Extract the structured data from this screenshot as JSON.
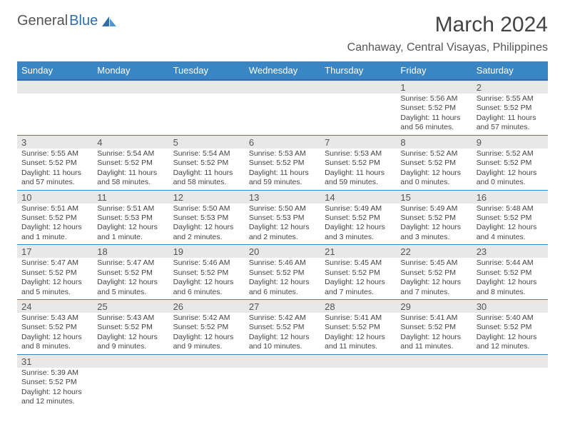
{
  "logo": {
    "text1": "General",
    "text2": "Blue"
  },
  "title": "March 2024",
  "location": "Canhaway, Central Visayas, Philippines",
  "colors": {
    "header_bg": "#3a86c4",
    "header_border": "#2f6ea8",
    "daynum_bg": "#e8e8e8",
    "row_border": "#3a86c4",
    "text": "#444444"
  },
  "weekdays": [
    "Sunday",
    "Monday",
    "Tuesday",
    "Wednesday",
    "Thursday",
    "Friday",
    "Saturday"
  ],
  "weeks": [
    [
      null,
      null,
      null,
      null,
      null,
      {
        "n": "1",
        "sunrise": "Sunrise: 5:56 AM",
        "sunset": "Sunset: 5:52 PM",
        "day1": "Daylight: 11 hours",
        "day2": "and 56 minutes."
      },
      {
        "n": "2",
        "sunrise": "Sunrise: 5:55 AM",
        "sunset": "Sunset: 5:52 PM",
        "day1": "Daylight: 11 hours",
        "day2": "and 57 minutes."
      }
    ],
    [
      {
        "n": "3",
        "sunrise": "Sunrise: 5:55 AM",
        "sunset": "Sunset: 5:52 PM",
        "day1": "Daylight: 11 hours",
        "day2": "and 57 minutes."
      },
      {
        "n": "4",
        "sunrise": "Sunrise: 5:54 AM",
        "sunset": "Sunset: 5:52 PM",
        "day1": "Daylight: 11 hours",
        "day2": "and 58 minutes."
      },
      {
        "n": "5",
        "sunrise": "Sunrise: 5:54 AM",
        "sunset": "Sunset: 5:52 PM",
        "day1": "Daylight: 11 hours",
        "day2": "and 58 minutes."
      },
      {
        "n": "6",
        "sunrise": "Sunrise: 5:53 AM",
        "sunset": "Sunset: 5:52 PM",
        "day1": "Daylight: 11 hours",
        "day2": "and 59 minutes."
      },
      {
        "n": "7",
        "sunrise": "Sunrise: 5:53 AM",
        "sunset": "Sunset: 5:52 PM",
        "day1": "Daylight: 11 hours",
        "day2": "and 59 minutes."
      },
      {
        "n": "8",
        "sunrise": "Sunrise: 5:52 AM",
        "sunset": "Sunset: 5:52 PM",
        "day1": "Daylight: 12 hours",
        "day2": "and 0 minutes."
      },
      {
        "n": "9",
        "sunrise": "Sunrise: 5:52 AM",
        "sunset": "Sunset: 5:52 PM",
        "day1": "Daylight: 12 hours",
        "day2": "and 0 minutes."
      }
    ],
    [
      {
        "n": "10",
        "sunrise": "Sunrise: 5:51 AM",
        "sunset": "Sunset: 5:52 PM",
        "day1": "Daylight: 12 hours",
        "day2": "and 1 minute."
      },
      {
        "n": "11",
        "sunrise": "Sunrise: 5:51 AM",
        "sunset": "Sunset: 5:53 PM",
        "day1": "Daylight: 12 hours",
        "day2": "and 1 minute."
      },
      {
        "n": "12",
        "sunrise": "Sunrise: 5:50 AM",
        "sunset": "Sunset: 5:53 PM",
        "day1": "Daylight: 12 hours",
        "day2": "and 2 minutes."
      },
      {
        "n": "13",
        "sunrise": "Sunrise: 5:50 AM",
        "sunset": "Sunset: 5:53 PM",
        "day1": "Daylight: 12 hours",
        "day2": "and 2 minutes."
      },
      {
        "n": "14",
        "sunrise": "Sunrise: 5:49 AM",
        "sunset": "Sunset: 5:52 PM",
        "day1": "Daylight: 12 hours",
        "day2": "and 3 minutes."
      },
      {
        "n": "15",
        "sunrise": "Sunrise: 5:49 AM",
        "sunset": "Sunset: 5:52 PM",
        "day1": "Daylight: 12 hours",
        "day2": "and 3 minutes."
      },
      {
        "n": "16",
        "sunrise": "Sunrise: 5:48 AM",
        "sunset": "Sunset: 5:52 PM",
        "day1": "Daylight: 12 hours",
        "day2": "and 4 minutes."
      }
    ],
    [
      {
        "n": "17",
        "sunrise": "Sunrise: 5:47 AM",
        "sunset": "Sunset: 5:52 PM",
        "day1": "Daylight: 12 hours",
        "day2": "and 5 minutes."
      },
      {
        "n": "18",
        "sunrise": "Sunrise: 5:47 AM",
        "sunset": "Sunset: 5:52 PM",
        "day1": "Daylight: 12 hours",
        "day2": "and 5 minutes."
      },
      {
        "n": "19",
        "sunrise": "Sunrise: 5:46 AM",
        "sunset": "Sunset: 5:52 PM",
        "day1": "Daylight: 12 hours",
        "day2": "and 6 minutes."
      },
      {
        "n": "20",
        "sunrise": "Sunrise: 5:46 AM",
        "sunset": "Sunset: 5:52 PM",
        "day1": "Daylight: 12 hours",
        "day2": "and 6 minutes."
      },
      {
        "n": "21",
        "sunrise": "Sunrise: 5:45 AM",
        "sunset": "Sunset: 5:52 PM",
        "day1": "Daylight: 12 hours",
        "day2": "and 7 minutes."
      },
      {
        "n": "22",
        "sunrise": "Sunrise: 5:45 AM",
        "sunset": "Sunset: 5:52 PM",
        "day1": "Daylight: 12 hours",
        "day2": "and 7 minutes."
      },
      {
        "n": "23",
        "sunrise": "Sunrise: 5:44 AM",
        "sunset": "Sunset: 5:52 PM",
        "day1": "Daylight: 12 hours",
        "day2": "and 8 minutes."
      }
    ],
    [
      {
        "n": "24",
        "sunrise": "Sunrise: 5:43 AM",
        "sunset": "Sunset: 5:52 PM",
        "day1": "Daylight: 12 hours",
        "day2": "and 8 minutes."
      },
      {
        "n": "25",
        "sunrise": "Sunrise: 5:43 AM",
        "sunset": "Sunset: 5:52 PM",
        "day1": "Daylight: 12 hours",
        "day2": "and 9 minutes."
      },
      {
        "n": "26",
        "sunrise": "Sunrise: 5:42 AM",
        "sunset": "Sunset: 5:52 PM",
        "day1": "Daylight: 12 hours",
        "day2": "and 9 minutes."
      },
      {
        "n": "27",
        "sunrise": "Sunrise: 5:42 AM",
        "sunset": "Sunset: 5:52 PM",
        "day1": "Daylight: 12 hours",
        "day2": "and 10 minutes."
      },
      {
        "n": "28",
        "sunrise": "Sunrise: 5:41 AM",
        "sunset": "Sunset: 5:52 PM",
        "day1": "Daylight: 12 hours",
        "day2": "and 11 minutes."
      },
      {
        "n": "29",
        "sunrise": "Sunrise: 5:41 AM",
        "sunset": "Sunset: 5:52 PM",
        "day1": "Daylight: 12 hours",
        "day2": "and 11 minutes."
      },
      {
        "n": "30",
        "sunrise": "Sunrise: 5:40 AM",
        "sunset": "Sunset: 5:52 PM",
        "day1": "Daylight: 12 hours",
        "day2": "and 12 minutes."
      }
    ],
    [
      {
        "n": "31",
        "sunrise": "Sunrise: 5:39 AM",
        "sunset": "Sunset: 5:52 PM",
        "day1": "Daylight: 12 hours",
        "day2": "and 12 minutes."
      },
      null,
      null,
      null,
      null,
      null,
      null
    ]
  ]
}
